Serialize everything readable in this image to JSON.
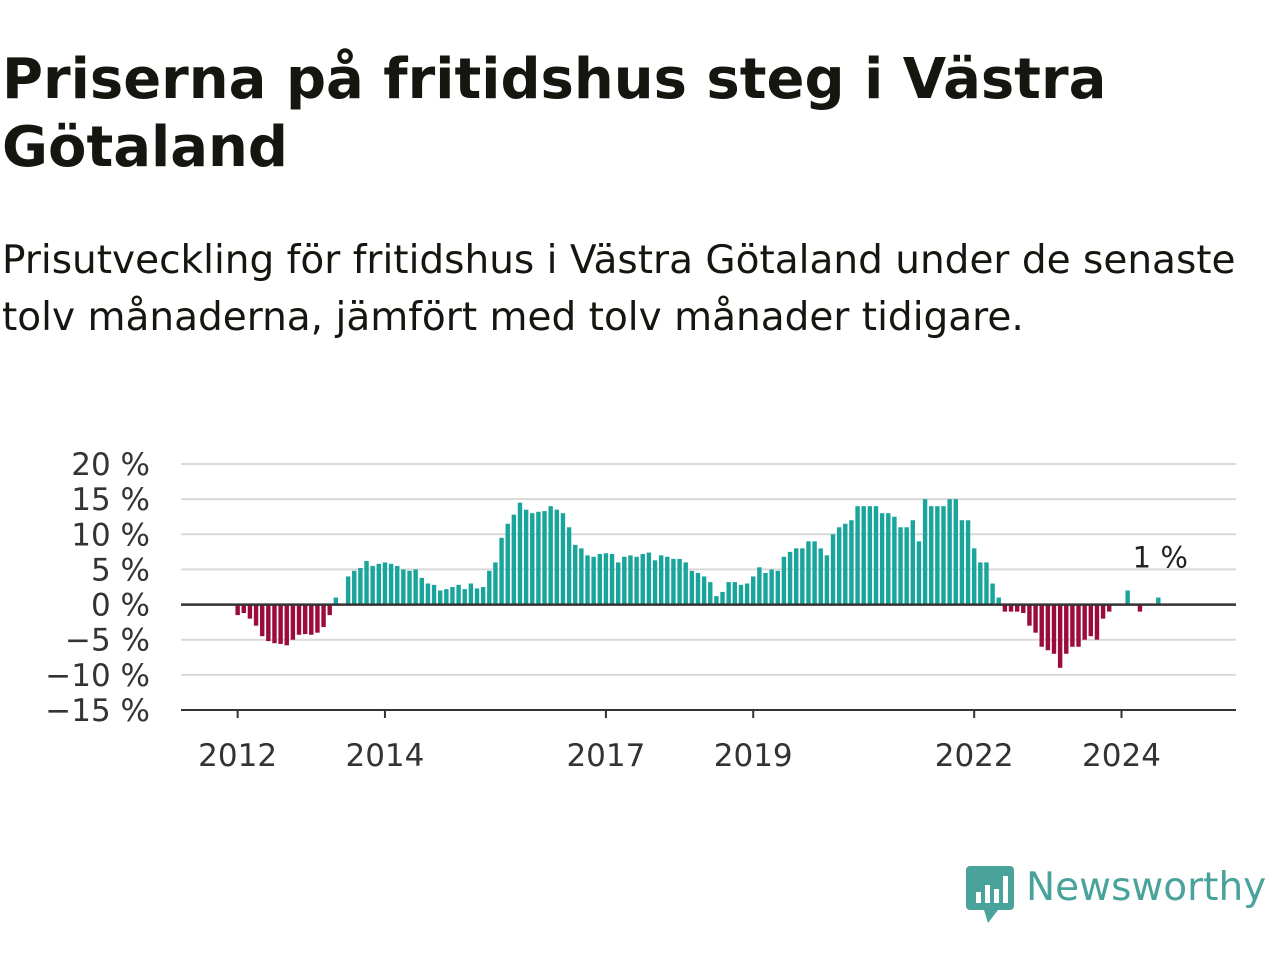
{
  "title": "Priserna på fritidshus steg i Västra Götaland",
  "subtitle": "Prisutveckling för fritidshus i Västra Götaland under de senaste tolv månaderna, jämfört med tolv månader tidigare.",
  "brand": {
    "name": "Newsworthy",
    "color": "#4aa39a"
  },
  "chart_data": {
    "type": "bar",
    "title": "",
    "xlabel": "",
    "ylabel": "",
    "ylim": [
      -15,
      20
    ],
    "y_ticks": [
      20,
      15,
      10,
      5,
      0,
      -5,
      -10,
      -15
    ],
    "y_tick_labels": [
      "20 %",
      "15 %",
      "10 %",
      "5 %",
      "0 %",
      "−5 %",
      "−10 %",
      "−15 %"
    ],
    "x_tick_labels": [
      "2012",
      "2014",
      "2017",
      "2019",
      "2022",
      "2024"
    ],
    "x_tick_dates": [
      "2012-01",
      "2014-01",
      "2017-01",
      "2019-01",
      "2022-01",
      "2024-01"
    ],
    "grid": true,
    "colors": {
      "positive": "#1aa59c",
      "negative": "#9b0b3c",
      "grid": "#d9d9d9",
      "zero_line": "#333333"
    },
    "end_label": "1 %",
    "start": "2011-12",
    "interval": "month",
    "values": [
      0.0,
      -1.5,
      -1.2,
      -2.0,
      -3.0,
      -4.5,
      -5.2,
      -5.5,
      -5.6,
      -5.8,
      -5.0,
      -4.3,
      -4.2,
      -4.3,
      -4.0,
      -3.2,
      -1.5,
      1.0,
      0.0,
      4.0,
      4.8,
      5.2,
      6.2,
      5.5,
      5.8,
      6.0,
      5.8,
      5.5,
      5.0,
      4.8,
      5.0,
      3.8,
      3.0,
      2.8,
      2.0,
      2.2,
      2.5,
      2.8,
      2.2,
      3.0,
      2.3,
      2.5,
      4.8,
      6.0,
      9.5,
      11.5,
      12.8,
      14.5,
      13.5,
      13.0,
      13.2,
      13.3,
      14.0,
      13.5,
      13.0,
      11.0,
      8.5,
      8.0,
      7.0,
      6.8,
      7.2,
      7.3,
      7.2,
      6.0,
      6.8,
      7.0,
      6.8,
      7.2,
      7.4,
      6.3,
      7.0,
      6.8,
      6.5,
      6.5,
      6.0,
      4.8,
      4.5,
      4.0,
      3.2,
      1.2,
      1.8,
      3.2,
      3.2,
      2.8,
      3.0,
      4.0,
      5.3,
      4.5,
      5.0,
      4.8,
      6.8,
      7.5,
      8.0,
      8.0,
      9.0,
      9.0,
      8.0,
      7.0,
      10.0,
      11.0,
      11.5,
      12.0,
      14.0,
      14.0,
      14.0,
      14.0,
      13.0,
      13.0,
      12.5,
      11.0,
      11.0,
      12.0,
      9.0,
      15.0,
      14.0,
      14.0,
      14.0,
      15.0,
      15.0,
      12.0,
      12.0,
      8.0,
      6.0,
      6.0,
      3.0,
      1.0,
      -1.0,
      -1.0,
      -1.0,
      -1.2,
      -3.0,
      -4.0,
      -6.0,
      -6.5,
      -7.0,
      -9.0,
      -7.0,
      -6.0,
      -6.0,
      -5.0,
      -4.5,
      -5.0,
      -2.0,
      -1.0,
      0.0,
      0.0,
      2.0,
      0.0,
      -1.0,
      0.0,
      0.0,
      1.0
    ]
  }
}
